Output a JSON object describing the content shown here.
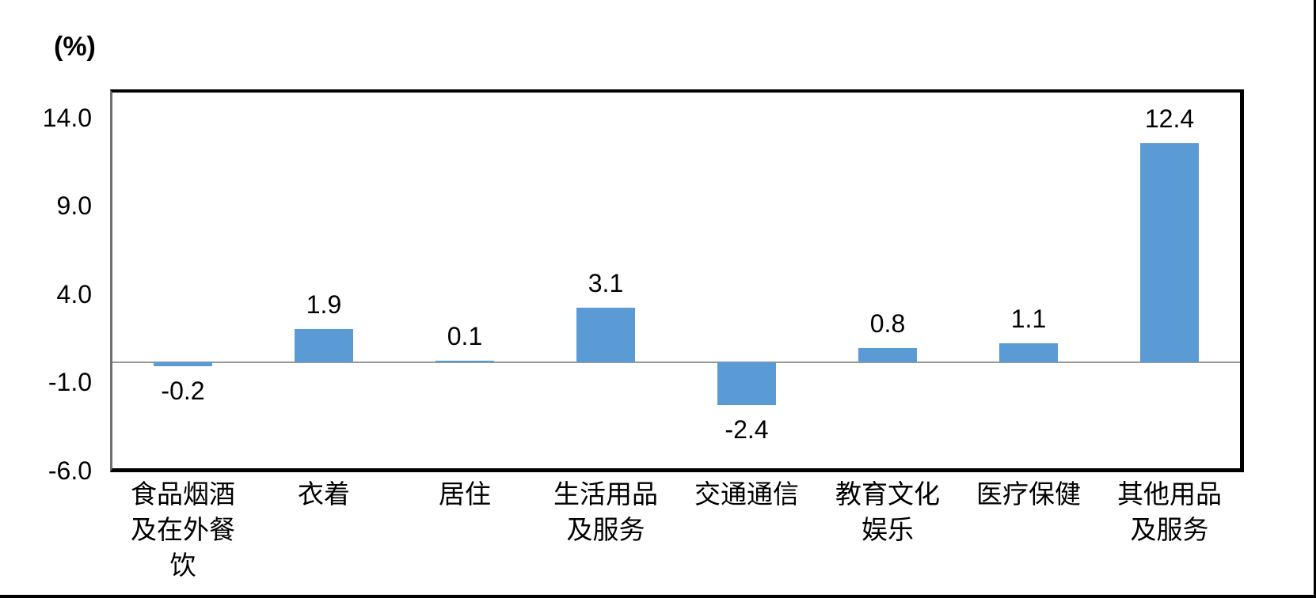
{
  "chart_data": {
    "type": "bar",
    "title": "",
    "unit_label": "(%)",
    "categories": [
      "食品烟酒\n及在外餐\n饮",
      "衣着",
      "居住",
      "生活用品\n及服务",
      "交通通信",
      "教育文化\n娱乐",
      "医疗保健",
      "其他用品\n及服务"
    ],
    "values": [
      -0.2,
      1.9,
      0.1,
      3.1,
      -2.4,
      0.8,
      1.1,
      12.4
    ],
    "data_labels": [
      "-0.2",
      "1.9",
      "0.1",
      "3.1",
      "-2.4",
      "0.8",
      "1.1",
      "12.4"
    ],
    "y_ticks": [
      {
        "value": 14.0,
        "label": "14.0"
      },
      {
        "value": 9.0,
        "label": "9.0"
      },
      {
        "value": 4.0,
        "label": "4.0"
      },
      {
        "value": -1.0,
        "label": "-1.0"
      },
      {
        "value": -6.0,
        "label": "-6.0"
      }
    ],
    "ylim": [
      -6.0,
      15.28
    ],
    "grid": false,
    "legend": false,
    "colors": {
      "bar": "#5B9BD5",
      "zero_line": "#999999",
      "value_axis_line": "#6e6e6e",
      "plot_border": "#000000"
    }
  }
}
